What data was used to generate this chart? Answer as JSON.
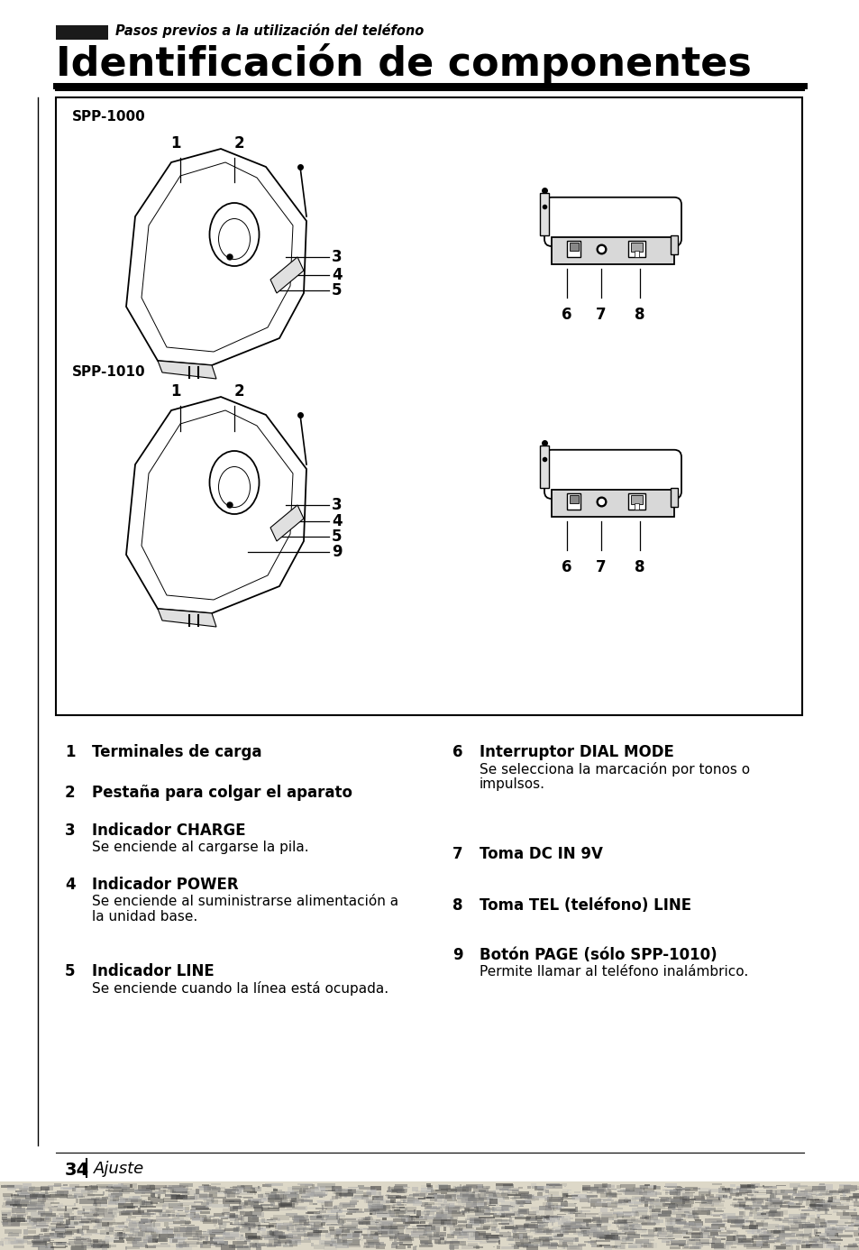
{
  "bg_color": "#ffffff",
  "title_subtitle": "Pasos previos a la utilización del teléfono",
  "title_main": "Identificación de componentes",
  "model1": "SPP-1000",
  "model2": "SPP-1010",
  "items_left": [
    {
      "num": "1",
      "bold": "Terminales de carga",
      "desc": ""
    },
    {
      "num": "2",
      "bold": "Pestaña para colgar el aparato",
      "desc": ""
    },
    {
      "num": "3",
      "bold": "Indicador CHARGE",
      "desc": "Se enciende al cargarse la pila."
    },
    {
      "num": "4",
      "bold": "Indicador POWER",
      "desc": "Se enciende al suministrarse alimentación a\nla unidad base."
    },
    {
      "num": "5",
      "bold": "Indicador LINE",
      "desc": "Se enciende cuando la línea está ocupada."
    }
  ],
  "items_right": [
    {
      "num": "6",
      "bold": "Interruptor DIAL MODE",
      "desc": "Se selecciona la marcación por tonos o\nimpulsos."
    },
    {
      "num": "7",
      "bold": "Toma DC IN 9V",
      "desc": ""
    },
    {
      "num": "8",
      "bold": "Toma TEL (teléfono) LINE",
      "desc": ""
    },
    {
      "num": "9",
      "bold": "Botón PAGE (sólo SPP-1010)",
      "desc": "Permite llamar al teléfono inalámbrico."
    }
  ],
  "page_num": "34",
  "page_section": "Ajuste",
  "black_rect_color": "#1a1a1a"
}
